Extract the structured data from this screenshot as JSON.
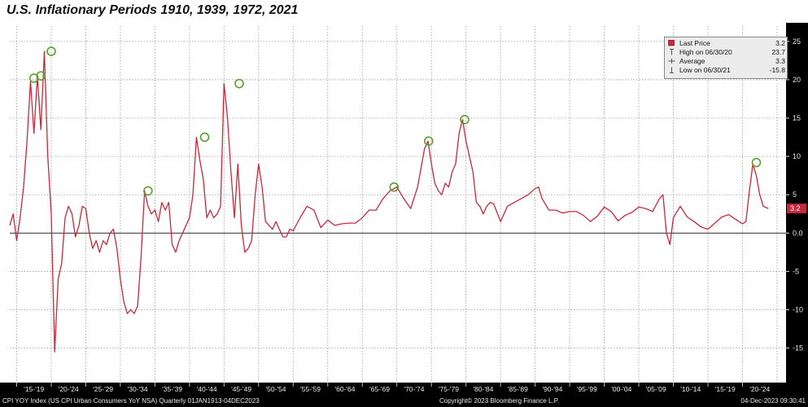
{
  "chart_data": {
    "type": "line",
    "title": "U.S. Inflationary Periods 1910, 1939, 1972, 2021",
    "xlim": [
      1914,
      2026.3
    ],
    "ylim": [
      -19.5,
      27
    ],
    "y_ticks": [
      25,
      20,
      15,
      10,
      5,
      0,
      -5,
      -10,
      -15
    ],
    "y_tick_labels": [
      "25",
      "20",
      "15",
      "10",
      "5",
      "0.0",
      "-5",
      "-10",
      "-15"
    ],
    "x_tick_labels": [
      "'15-'19",
      "'20-'24",
      "'25-'29",
      "'30-'34",
      "'35-'39",
      "'40-'44",
      "'45-'49",
      "'50-'54",
      "'55-'59",
      "'60-'64",
      "'65-'69",
      "'70-'74",
      "'75-'79",
      "'80-'84",
      "'85-'89",
      "'90-'94",
      "'95-'99",
      "'00-'04",
      "'05-'09",
      "'10-'14",
      "'15-'19",
      "'20-'24"
    ],
    "grid": true,
    "zero_line": 0,
    "last_value": 3.2,
    "last_value_label": "3.2",
    "legend_position": "top-right",
    "series": [
      {
        "name": "Last Price",
        "color": "#c8283c",
        "x": [
          1914,
          1914.5,
          1915,
          1915.5,
          1916,
          1916.5,
          1917,
          1917.5,
          1918,
          1918.5,
          1919,
          1919.5,
          1920,
          1920.5,
          1921,
          1921.5,
          1922,
          1922.5,
          1923,
          1923.5,
          1924,
          1924.5,
          1925,
          1925.5,
          1926,
          1926.5,
          1927,
          1927.5,
          1928,
          1928.5,
          1929,
          1929.5,
          1930,
          1930.5,
          1931,
          1931.5,
          1932,
          1932.5,
          1933,
          1933.5,
          1934,
          1934.5,
          1935,
          1935.5,
          1936,
          1936.5,
          1937,
          1937.5,
          1938,
          1938.5,
          1939,
          1939.5,
          1940,
          1940.5,
          1941,
          1941.5,
          1942,
          1942.5,
          1943,
          1943.5,
          1944,
          1944.5,
          1945,
          1945.5,
          1946,
          1946.5,
          1947,
          1947.5,
          1948,
          1948.5,
          1949,
          1949.5,
          1950,
          1950.5,
          1951,
          1951.5,
          1952,
          1952.5,
          1953,
          1953.5,
          1954,
          1954.5,
          1955,
          1956,
          1957,
          1958,
          1959,
          1960,
          1961,
          1962,
          1963,
          1964,
          1965,
          1966,
          1967,
          1968,
          1969,
          1970,
          1971,
          1972,
          1973,
          1974,
          1974.5,
          1975,
          1975.5,
          1976,
          1976.5,
          1977,
          1977.5,
          1978,
          1978.5,
          1979,
          1979.5,
          1980,
          1980.5,
          1981,
          1981.5,
          1982,
          1982.5,
          1983,
          1983.5,
          1984,
          1985,
          1986,
          1987,
          1988,
          1989,
          1990,
          1990.5,
          1991,
          1992,
          1993,
          1994,
          1995,
          1996,
          1997,
          1998,
          1999,
          2000,
          2001,
          2002,
          2003,
          2004,
          2005,
          2006,
          2007,
          2008,
          2008.5,
          2009,
          2009.5,
          2010,
          2011,
          2012,
          2013,
          2014,
          2015,
          2016,
          2017,
          2018,
          2019,
          2020,
          2020.5,
          2021,
          2021.5,
          2022,
          2022.5,
          2023,
          2023.75
        ],
        "y": [
          1.0,
          2.5,
          -1.0,
          2.0,
          6.0,
          12.0,
          19.8,
          13.0,
          20.5,
          13.5,
          23.7,
          10.0,
          2.5,
          -15.5,
          -6.0,
          -4.0,
          2.0,
          3.5,
          2.5,
          -0.5,
          1.0,
          3.5,
          3.2,
          0.0,
          -2.0,
          -1.0,
          -2.5,
          -1.0,
          -1.5,
          0.0,
          0.5,
          -2.0,
          -6.0,
          -9.0,
          -10.5,
          -10.0,
          -10.5,
          -9.5,
          -3.0,
          5.5,
          3.5,
          2.5,
          3.0,
          1.5,
          4.0,
          3.0,
          4.0,
          -1.5,
          -2.5,
          -1.0,
          0.0,
          1.0,
          2.0,
          5.0,
          12.5,
          9.5,
          7.0,
          2.0,
          3.0,
          2.0,
          2.5,
          3.5,
          19.5,
          15.0,
          8.0,
          2.0,
          9.0,
          1.0,
          -2.5,
          -2.0,
          -1.0,
          5.0,
          9.0,
          6.0,
          1.5,
          1.0,
          0.5,
          1.5,
          0.5,
          -0.5,
          -0.5,
          0.5,
          0.3,
          2.0,
          3.5,
          3.0,
          0.7,
          1.7,
          1.0,
          1.2,
          1.3,
          1.3,
          2.0,
          3.0,
          3.0,
          4.5,
          5.5,
          6.0,
          4.5,
          3.2,
          6.0,
          11.0,
          12.0,
          9.0,
          6.5,
          5.5,
          5.0,
          6.5,
          6.0,
          8.0,
          9.0,
          13.0,
          14.8,
          12.0,
          10.0,
          8.0,
          4.0,
          3.5,
          2.5,
          3.5,
          4.0,
          3.8,
          1.5,
          3.5,
          4.0,
          4.5,
          5.0,
          5.8,
          6.0,
          4.5,
          3.0,
          3.0,
          2.6,
          2.8,
          2.8,
          2.3,
          1.5,
          2.2,
          3.4,
          2.8,
          1.6,
          2.3,
          2.7,
          3.4,
          3.2,
          2.8,
          4.5,
          5.0,
          0.0,
          -1.5,
          2.0,
          3.5,
          2.1,
          1.5,
          0.8,
          0.5,
          1.3,
          2.1,
          2.4,
          1.8,
          1.2,
          1.5,
          5.5,
          9.0,
          7.5,
          5.0,
          3.5,
          3.2
        ]
      }
    ],
    "highlights": [
      {
        "x": 1917.5,
        "y": 20.2
      },
      {
        "x": 1918.5,
        "y": 20.5
      },
      {
        "x": 1920.0,
        "y": 23.7
      },
      {
        "x": 1934.0,
        "y": 5.5
      },
      {
        "x": 1942.2,
        "y": 12.5
      },
      {
        "x": 1947.2,
        "y": 19.5
      },
      {
        "x": 1969.6,
        "y": 6.0
      },
      {
        "x": 1974.6,
        "y": 12.0
      },
      {
        "x": 1979.8,
        "y": 14.8
      },
      {
        "x": 2022.0,
        "y": 9.2
      }
    ],
    "legend": {
      "rows": [
        {
          "label": "Last Price",
          "value": "3.2",
          "icon": "red-square-icon"
        },
        {
          "label": "High on 06/30/20",
          "value": "23.7",
          "icon": "high-marker-icon"
        },
        {
          "label": "Average",
          "value": "3.3",
          "icon": "average-marker-icon"
        },
        {
          "label": "Low on 06/30/21",
          "value": "-15.8",
          "icon": "low-marker-icon"
        }
      ]
    }
  },
  "footer": {
    "left": "CPI YOY Index (US CPI Urban Consumers YoY NSA)  Quarterly 01JAN1913-04DEC2023",
    "center": "Copyright© 2023 Bloomberg Finance L.P.",
    "right": "04-Dec-2023 09:30:41"
  }
}
